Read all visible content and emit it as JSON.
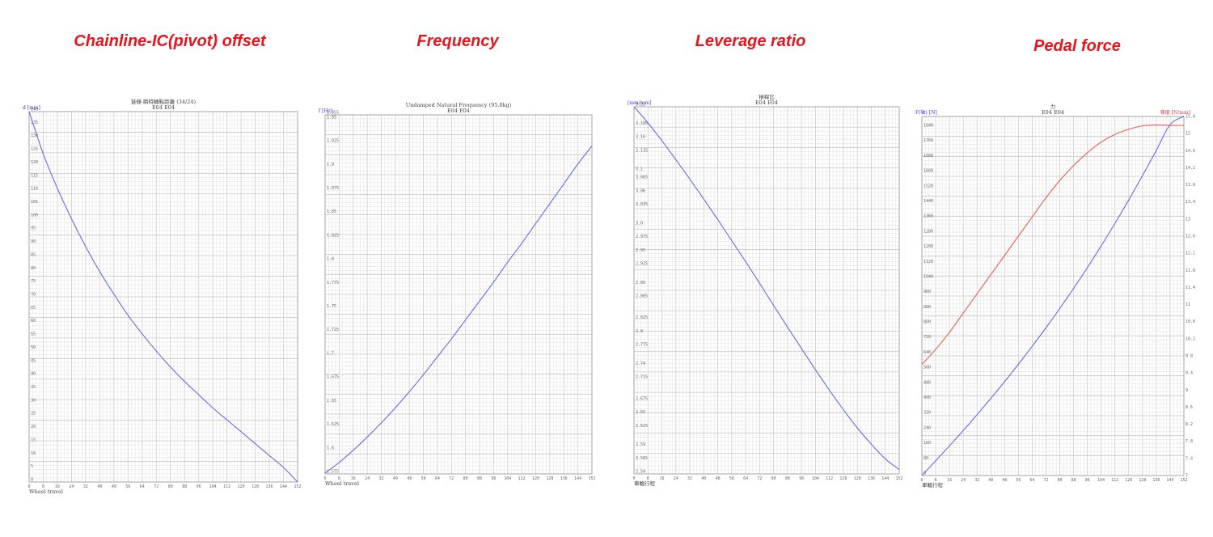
{
  "panel_titles": [
    "Chainline-IC(pivot) offset",
    "Frequency",
    "Leverage ratio",
    "Pedal force"
  ],
  "colors": {
    "title_red": "#e8141b",
    "series_blue": "#6a6ae8",
    "series_red": "#e06050",
    "unit_blue": "#3a3ae0",
    "unit_red": "#d04040"
  },
  "chart_data": [
    {
      "type": "line",
      "title": "链條-瞬時轉點距離 (34/24)",
      "subtitle": "E04 E04",
      "ylabel": "d [mm]",
      "xlabel": "Wheel travel",
      "xlim": [
        0,
        152
      ],
      "ylim": [
        0,
        140
      ],
      "x_ticks": [
        "0",
        "8",
        "16",
        "24",
        "32",
        "40",
        "48",
        "56",
        "64",
        "72",
        "80",
        "88",
        "96",
        "104",
        "112",
        "120",
        "128",
        "136",
        "144",
        "152"
      ],
      "y_ticks": [
        "0",
        "5",
        "10",
        "15",
        "20",
        "25",
        "30",
        "35",
        "40",
        "45",
        "50",
        "55",
        "60",
        "65",
        "70",
        "75",
        "80",
        "85",
        "90",
        "95",
        "100",
        "105",
        "110",
        "115",
        "120",
        "125",
        "130",
        "135",
        "140"
      ],
      "series": [
        {
          "color": "#6a6ae8",
          "x": [
            0,
            8,
            16,
            24,
            32,
            40,
            48,
            56,
            64,
            72,
            80,
            88,
            96,
            104,
            112,
            120,
            128,
            136,
            144,
            152
          ],
          "y": [
            140,
            124,
            111,
            99.5,
            89,
            79.5,
            71,
            63,
            56,
            49.5,
            43.5,
            38,
            33,
            28,
            23.5,
            19,
            14.5,
            10,
            5.5,
            0
          ]
        }
      ]
    },
    {
      "type": "line",
      "title": "Undamped Natural Frequency (95.0kg)",
      "subtitle": "E04 E04",
      "ylabel": "f [Hz]",
      "xlabel": "Wheel travel",
      "xlim": [
        0,
        152
      ],
      "ylim": [
        1.575,
        1.955
      ],
      "x_ticks": [
        "0",
        "8",
        "16",
        "24",
        "32",
        "40",
        "48",
        "56",
        "64",
        "72",
        "80",
        "88",
        "96",
        "104",
        "112",
        "120",
        "128",
        "136",
        "144",
        "152"
      ],
      "y_ticks": [
        "1.575",
        "1.6",
        "1.625",
        "1.65",
        "1.675",
        "1.7",
        "1.725",
        "1.75",
        "1.775",
        "1.8",
        "1.825",
        "1.85",
        "1.875",
        "1.9",
        "1.925",
        "1.95",
        "1.955"
      ],
      "series": [
        {
          "color": "#6a6ae8",
          "x": [
            0,
            8,
            16,
            24,
            32,
            40,
            48,
            56,
            64,
            72,
            80,
            88,
            96,
            104,
            112,
            120,
            128,
            136,
            144,
            152
          ],
          "y": [
            1.576,
            1.587,
            1.6,
            1.614,
            1.629,
            1.645,
            1.662,
            1.68,
            1.699,
            1.718,
            1.738,
            1.758,
            1.778,
            1.799,
            1.819,
            1.84,
            1.861,
            1.882,
            1.903,
            1.922
          ]
        }
      ]
    },
    {
      "type": "line",
      "title": "槓桿比",
      "subtitle": "E04 E04",
      "ylabel": "[mm/mm]",
      "xlabel": "車輪行程",
      "xlim": [
        0,
        152
      ],
      "ylim": [
        2.54,
        3.22
      ],
      "x_ticks": [
        "0",
        "8",
        "16",
        "24",
        "32",
        "40",
        "48",
        "56",
        "64",
        "72",
        "80",
        "88",
        "96",
        "104",
        "112",
        "120",
        "128",
        "136",
        "144",
        "152"
      ],
      "y_ticks": [
        "2.54",
        "2.565",
        "2.59",
        "2.625",
        "2.65",
        "2.675",
        "2.715",
        "2.74",
        "2.775",
        "2.8",
        "2.825",
        "2.865",
        "2.89",
        "2.925",
        "2.95",
        "2.975",
        "3.0",
        "3.035",
        "3.06",
        "3.085",
        "3.1",
        "3.135",
        "3.16",
        "3.185",
        "3.22"
      ],
      "series": [
        {
          "color": "#6a6ae8",
          "x": [
            0,
            8,
            16,
            24,
            32,
            40,
            48,
            56,
            64,
            72,
            80,
            88,
            96,
            104,
            112,
            120,
            128,
            136,
            144,
            152
          ],
          "y": [
            3.22,
            3.19,
            3.157,
            3.122,
            3.086,
            3.049,
            3.011,
            2.972,
            2.933,
            2.893,
            2.852,
            2.812,
            2.772,
            2.733,
            2.695,
            2.659,
            2.625,
            2.595,
            2.568,
            2.548
          ]
        }
      ]
    },
    {
      "type": "line",
      "title": "力",
      "subtitle": "E04 E04",
      "ylabel": "F(轴) [N]",
      "y2label": "梯度 [N/mm]",
      "xlabel": "車輪行程",
      "xlim": [
        0,
        152
      ],
      "ylim": [
        0,
        1900
      ],
      "y2lim": [
        7,
        15.4
      ],
      "x_ticks": [
        "0",
        "8",
        "16",
        "24",
        "32",
        "40",
        "48",
        "56",
        "64",
        "72",
        "80",
        "88",
        "96",
        "104",
        "112",
        "120",
        "128",
        "136",
        "144",
        "152"
      ],
      "y_ticks": [
        "0",
        "80",
        "160",
        "240",
        "320",
        "400",
        "480",
        "560",
        "640",
        "720",
        "800",
        "880",
        "960",
        "1040",
        "1120",
        "1200",
        "1280",
        "1360",
        "1440",
        "1520",
        "1600",
        "1680",
        "1760",
        "1840"
      ],
      "y2_ticks": [
        "7",
        "7.4",
        "7.8",
        "8.2",
        "8.6",
        "9",
        "9.4",
        "9.8",
        "10.2",
        "10.6",
        "11",
        "11.4",
        "11.8",
        "12.2",
        "12.6",
        "13",
        "13.4",
        "13.8",
        "14.2",
        "14.6",
        "15",
        "15.4"
      ],
      "series": [
        {
          "name": "F(轴) [N]",
          "color": "#6a6ae8",
          "axis": "left",
          "x": [
            0,
            8,
            16,
            24,
            32,
            40,
            48,
            56,
            64,
            72,
            80,
            88,
            96,
            104,
            112,
            120,
            128,
            136,
            144,
            152
          ],
          "y": [
            0,
            78,
            157,
            238,
            322,
            408,
            497,
            589,
            684,
            782,
            884,
            990,
            1100,
            1215,
            1334,
            1458,
            1587,
            1720,
            1857,
            1900
          ]
        },
        {
          "name": "梯度 [N/mm]",
          "color": "#e06050",
          "axis": "right",
          "x": [
            0,
            8,
            16,
            24,
            32,
            40,
            48,
            56,
            64,
            72,
            80,
            88,
            96,
            104,
            112,
            120,
            128,
            136,
            144,
            152
          ],
          "y": [
            9.6,
            9.95,
            10.35,
            10.8,
            11.25,
            11.7,
            12.15,
            12.6,
            13.05,
            13.5,
            13.9,
            14.25,
            14.55,
            14.8,
            14.98,
            15.1,
            15.18,
            15.2,
            15.19,
            15.19
          ]
        }
      ]
    }
  ]
}
